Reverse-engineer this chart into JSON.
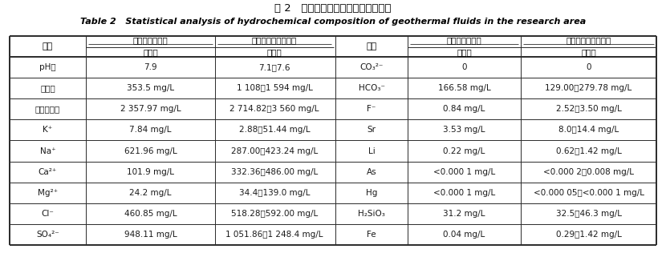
{
  "title_cn": "表 2   研究区地热流体水化学成分统计",
  "title_en": "Table 2   Statistical analysis of hydrochemical composition of geothermal fluids in the research area",
  "bg_color": "#ffffff",
  "text_color": "#1a1a1a",
  "border_color": "#2a2a2a",
  "header_left_col1": "新生界砂岩热儲",
  "header_left_col2": "古生界碳酸盐岩热儲",
  "header_right_col1": "新生界砂岩热儲",
  "header_right_col2": "古生界碳酸盐岩热儲",
  "item_label": "项目",
  "range_label": "范围值",
  "rows_left": [
    [
      "pH値",
      "7.9",
      "7.1～7.6"
    ],
    [
      "总硬度",
      "353.5 mg/L",
      "1 108～1 594 mg/L"
    ],
    [
      "溶解总固体",
      "2 357.97 mg/L",
      "2 714.82～3 560 mg/L"
    ],
    [
      "K⁺",
      "7.84 mg/L",
      "2.88～51.44 mg/L"
    ],
    [
      "Na⁺",
      "621.96 mg/L",
      "287.00～423.24 mg/L"
    ],
    [
      "Ca²⁺",
      "101.9 mg/L",
      "332.36～486.00 mg/L"
    ],
    [
      "Mg²⁺",
      "24.2 mg/L",
      "34.4～139.0 mg/L"
    ],
    [
      "Cl⁻",
      "460.85 mg/L",
      "518.28～592.00 mg/L"
    ],
    [
      "SO₄²⁻",
      "948.11 mg/L",
      "1 051.86～1 248.4 mg/L"
    ]
  ],
  "rows_right": [
    [
      "CO₃²⁻",
      "0",
      "0"
    ],
    [
      "HCO₃⁻",
      "166.58 mg/L",
      "129.00～279.78 mg/L"
    ],
    [
      "F⁻",
      "0.84 mg/L",
      "2.52～3.50 mg/L"
    ],
    [
      "Sr",
      "3.53 mg/L",
      "8.0～14.4 mg/L"
    ],
    [
      "Li",
      "0.22 mg/L",
      "0.62～1.42 mg/L"
    ],
    [
      "As",
      "<0.000 1 mg/L",
      "<0.000 2～0.008 mg/L"
    ],
    [
      "Hg",
      "<0.000 1 mg/L",
      "<0.000 05～<0.000 1 mg/L"
    ],
    [
      "H₂SiO₃",
      "31.2 mg/L",
      "32.5～46.3 mg/L"
    ],
    [
      "Fe",
      "0.04 mg/L",
      "0.29～1.42 mg/L"
    ]
  ]
}
